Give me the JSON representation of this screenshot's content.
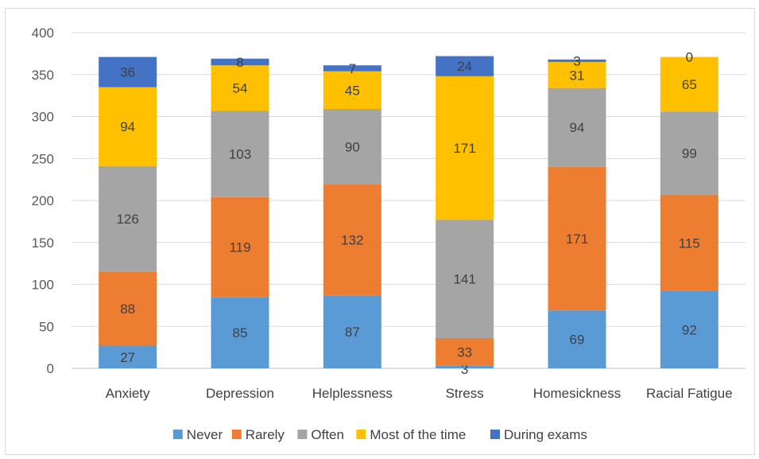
{
  "chart_data": {
    "type": "bar",
    "stacked": true,
    "categories": [
      "Anxiety",
      "Depression",
      "Helplessness",
      "Stress",
      "Homesickness",
      "Racial Fatigue"
    ],
    "series": [
      {
        "name": "Never",
        "color": "#5B9BD5",
        "values": [
          27,
          85,
          87,
          3,
          69,
          92
        ]
      },
      {
        "name": "Rarely",
        "color": "#ED7D31",
        "values": [
          88,
          119,
          132,
          33,
          171,
          115
        ]
      },
      {
        "name": "Often",
        "color": "#A5A5A5",
        "values": [
          126,
          103,
          90,
          141,
          94,
          99
        ]
      },
      {
        "name": "Most of the time",
        "color": "#FFC000",
        "values": [
          94,
          54,
          45,
          171,
          31,
          65
        ]
      },
      {
        "name": "During exams",
        "color": "#4472C4",
        "values": [
          36,
          8,
          7,
          24,
          3,
          0
        ]
      }
    ],
    "ylim": [
      0,
      400
    ],
    "yticks": [
      0,
      50,
      100,
      150,
      200,
      250,
      300,
      350,
      400
    ],
    "grid": true,
    "legend": "bottom"
  }
}
